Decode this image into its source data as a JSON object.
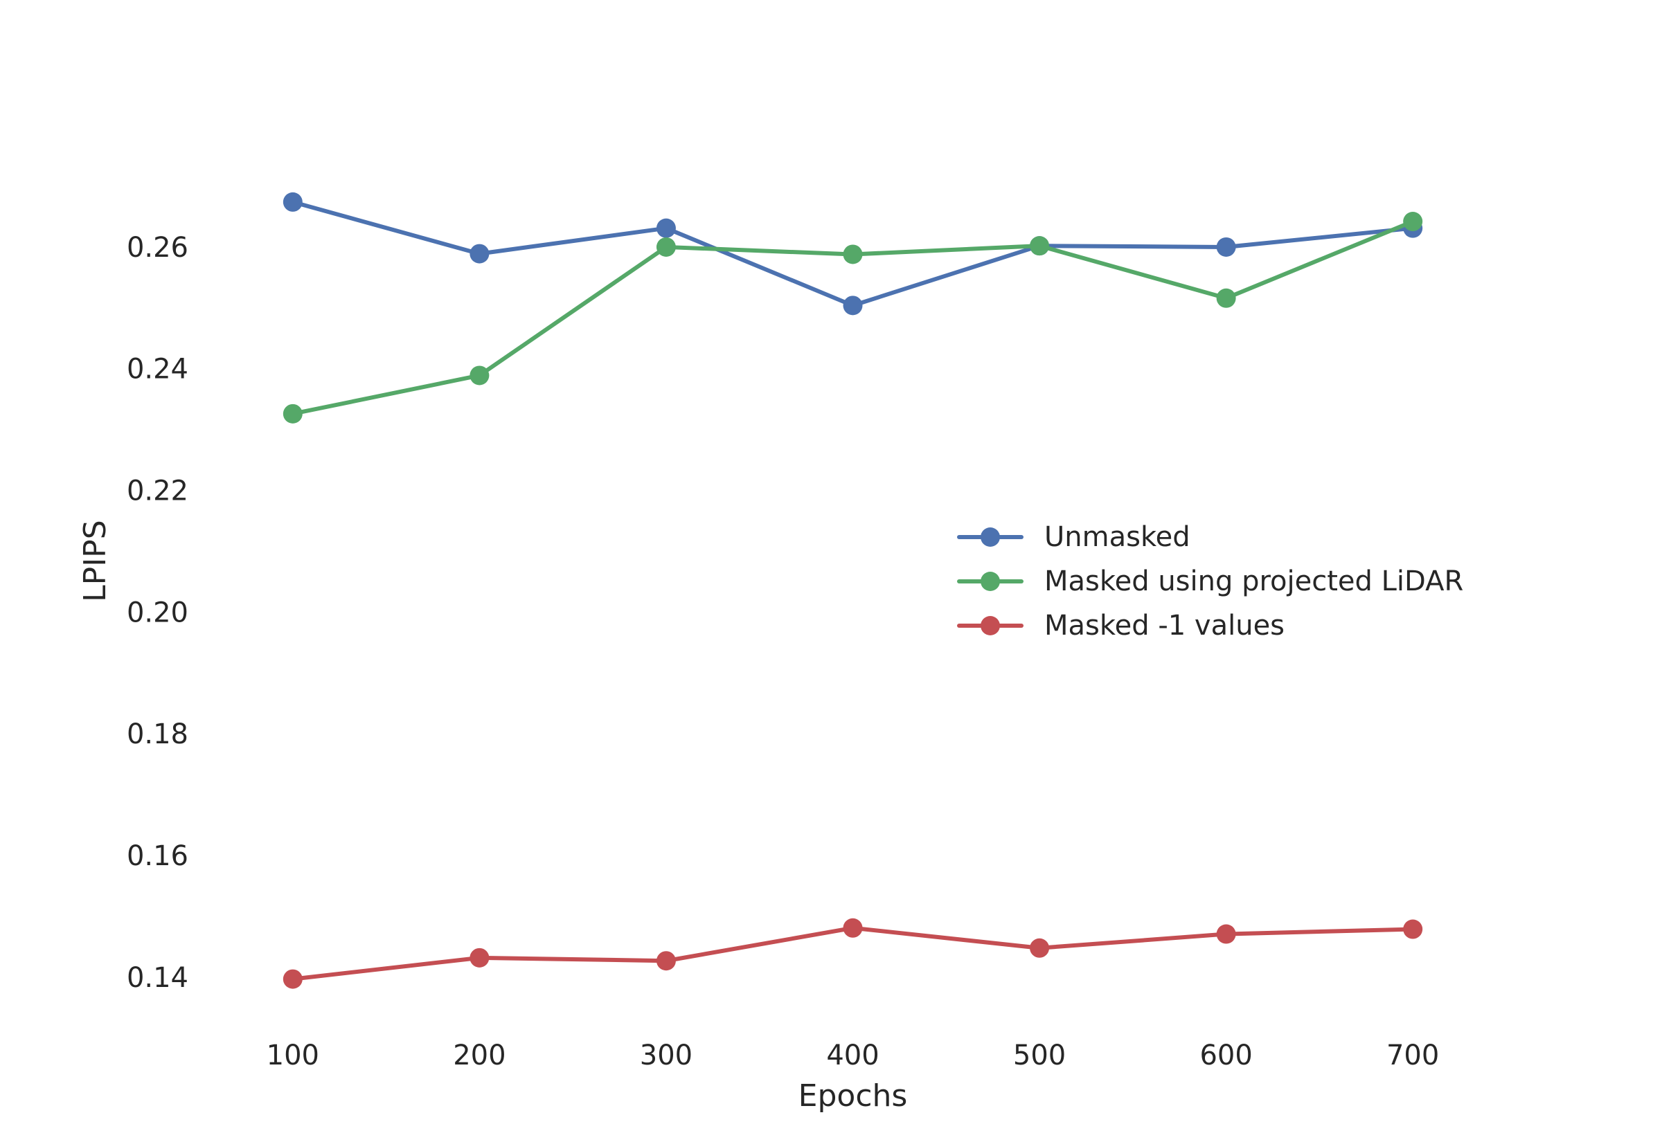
{
  "chart_data": {
    "type": "line",
    "title": "",
    "xlabel": "Epochs",
    "ylabel": "LPIPS",
    "x": [
      100,
      200,
      300,
      400,
      500,
      600,
      700
    ],
    "xticks": [
      "100",
      "200",
      "300",
      "400",
      "500",
      "600",
      "700"
    ],
    "yticks": [
      "0.14",
      "0.16",
      "0.18",
      "0.20",
      "0.22",
      "0.24",
      "0.26"
    ],
    "ylim": [
      0.1335,
      0.2825
    ],
    "xlim": [
      60,
      740
    ],
    "grid": false,
    "legend_position": "center-right",
    "series": [
      {
        "name": "Unmasked",
        "color": "#4c72b0",
        "values": [
          0.2675,
          0.259,
          0.2632,
          0.2505,
          0.2603,
          0.2601,
          0.2632
        ]
      },
      {
        "name": "Masked using projected LiDAR",
        "color": "#55a868",
        "values": [
          0.2327,
          0.239,
          0.2601,
          0.2589,
          0.2603,
          0.2517,
          0.2643
        ]
      },
      {
        "name": "Masked -1 values",
        "color": "#c44e52",
        "values": [
          0.1398,
          0.1433,
          0.1428,
          0.1482,
          0.1449,
          0.1472,
          0.148
        ]
      }
    ]
  }
}
